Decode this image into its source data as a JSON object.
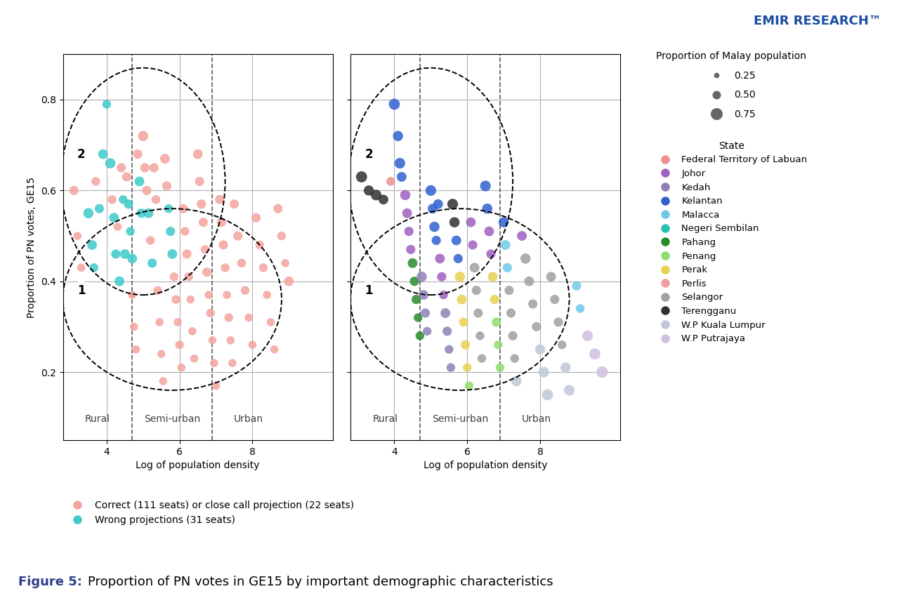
{
  "title": "Proportion of PN votes in GE15 by important demographic characteristics",
  "figure_label": "Figure 5:",
  "credit": "EMIR RESEARCH™",
  "size_legend": {
    "title": "Proportion of Malay population",
    "sizes": [
      30,
      75,
      150
    ],
    "labels": [
      "0.25",
      "0.50",
      "0.75"
    ]
  },
  "chart_data": [
    {
      "type": "scatter",
      "xlabel": "Log of population density",
      "ylabel": "Proportion of PN votes, GE15",
      "xlim": [
        2.8,
        10.2
      ],
      "ylim": [
        0.05,
        0.9
      ],
      "xticks": [
        4,
        6,
        8
      ],
      "yticks": [
        0.2,
        0.4,
        0.6,
        0.8
      ],
      "grid": true,
      "vlines": [
        4.7,
        6.9
      ],
      "ellipses": [
        {
          "cx": 5.0,
          "cy": 0.62,
          "width": 4.5,
          "height": 0.5
        },
        {
          "cx": 5.8,
          "cy": 0.36,
          "width": 6.0,
          "height": 0.4
        }
      ],
      "annotations": [
        {
          "text": "Rural",
          "x": 3.75,
          "y": 0.085
        },
        {
          "text": "Semi-urban",
          "x": 5.8,
          "y": 0.085
        },
        {
          "text": "Urban",
          "x": 7.9,
          "y": 0.085
        }
      ],
      "region_labels": [
        {
          "text": "2",
          "x": 3.3,
          "y": 0.68
        },
        {
          "text": "1",
          "x": 3.3,
          "y": 0.38
        }
      ],
      "x": [
        3.1,
        3.2,
        3.3,
        3.5,
        3.6,
        3.65,
        3.7,
        3.8,
        3.9,
        4.0,
        4.1,
        4.15,
        4.2,
        4.25,
        4.3,
        4.35,
        4.4,
        4.45,
        4.5,
        4.55,
        4.6,
        4.65,
        4.7,
        4.7,
        4.75,
        4.8,
        4.85,
        4.9,
        4.95,
        5.0,
        5.05,
        5.1,
        5.15,
        5.2,
        5.25,
        5.3,
        5.35,
        5.4,
        5.45,
        5.5,
        5.55,
        5.6,
        5.65,
        5.7,
        5.75,
        5.8,
        5.85,
        5.9,
        5.95,
        6.0,
        6.05,
        6.1,
        6.15,
        6.2,
        6.25,
        6.3,
        6.35,
        6.4,
        6.5,
        6.55,
        6.6,
        6.65,
        6.7,
        6.75,
        6.8,
        6.85,
        6.9,
        6.95,
        7.0,
        7.1,
        7.15,
        7.2,
        7.25,
        7.3,
        7.35,
        7.4,
        7.45,
        7.5,
        7.6,
        7.7,
        7.8,
        7.9,
        8.0,
        8.1,
        8.2,
        8.3,
        8.4,
        8.5,
        8.6,
        8.7,
        8.8,
        8.9,
        9.0
      ],
      "y": [
        0.6,
        0.5,
        0.43,
        0.55,
        0.48,
        0.43,
        0.62,
        0.56,
        0.68,
        0.79,
        0.66,
        0.58,
        0.54,
        0.46,
        0.52,
        0.4,
        0.65,
        0.58,
        0.46,
        0.63,
        0.57,
        0.51,
        0.45,
        0.37,
        0.3,
        0.25,
        0.68,
        0.62,
        0.55,
        0.72,
        0.65,
        0.6,
        0.55,
        0.49,
        0.44,
        0.65,
        0.58,
        0.38,
        0.31,
        0.24,
        0.18,
        0.67,
        0.61,
        0.56,
        0.51,
        0.46,
        0.41,
        0.36,
        0.31,
        0.26,
        0.21,
        0.56,
        0.51,
        0.46,
        0.41,
        0.36,
        0.29,
        0.23,
        0.68,
        0.62,
        0.57,
        0.53,
        0.47,
        0.42,
        0.37,
        0.33,
        0.27,
        0.22,
        0.17,
        0.58,
        0.53,
        0.48,
        0.43,
        0.37,
        0.32,
        0.27,
        0.22,
        0.57,
        0.5,
        0.44,
        0.38,
        0.32,
        0.26,
        0.54,
        0.48,
        0.43,
        0.37,
        0.31,
        0.25,
        0.56,
        0.5,
        0.44,
        0.4
      ],
      "sizes": [
        90,
        70,
        70,
        110,
        100,
        80,
        80,
        90,
        100,
        80,
        110,
        80,
        100,
        90,
        70,
        100,
        90,
        80,
        100,
        90,
        90,
        80,
        100,
        70,
        70,
        70,
        90,
        100,
        90,
        110,
        90,
        90,
        100,
        80,
        90,
        90,
        80,
        80,
        70,
        70,
        70,
        100,
        90,
        80,
        90,
        100,
        80,
        80,
        70,
        80,
        70,
        90,
        80,
        90,
        80,
        70,
        70,
        70,
        100,
        90,
        90,
        90,
        80,
        90,
        70,
        80,
        70,
        70,
        70,
        90,
        90,
        90,
        80,
        70,
        80,
        70,
        70,
        90,
        90,
        80,
        80,
        70,
        70,
        90,
        80,
        80,
        70,
        70,
        70,
        90,
        80,
        70,
        100
      ],
      "colors": [
        "#F4A49E",
        "#F4A49E",
        "#F4A49E",
        "#3EC9C9",
        "#3EC9C9",
        "#3EC9C9",
        "#F4A49E",
        "#3EC9C9",
        "#3EC9C9",
        "#3EC9C9",
        "#3EC9C9",
        "#F4A49E",
        "#3EC9C9",
        "#3EC9C9",
        "#F4A49E",
        "#3EC9C9",
        "#F4A49E",
        "#3EC9C9",
        "#3EC9C9",
        "#F4A49E",
        "#3EC9C9",
        "#3EC9C9",
        "#3EC9C9",
        "#F4A49E",
        "#F4A49E",
        "#F4A49E",
        "#F4A49E",
        "#3EC9C9",
        "#3EC9C9",
        "#F4A49E",
        "#F4A49E",
        "#F4A49E",
        "#3EC9C9",
        "#F4A49E",
        "#3EC9C9",
        "#F4A49E",
        "#F4A49E",
        "#F4A49E",
        "#F4A49E",
        "#F4A49E",
        "#F4A49E",
        "#F4A49E",
        "#F4A49E",
        "#3EC9C9",
        "#3EC9C9",
        "#3EC9C9",
        "#F4A49E",
        "#F4A49E",
        "#F4A49E",
        "#F4A49E",
        "#F4A49E",
        "#F4A49E",
        "#F4A49E",
        "#F4A49E",
        "#F4A49E",
        "#F4A49E",
        "#F4A49E",
        "#F4A49E",
        "#F4A49E",
        "#F4A49E",
        "#F4A49E",
        "#F4A49E",
        "#F4A49E",
        "#F4A49E",
        "#F4A49E",
        "#F4A49E",
        "#F4A49E",
        "#F4A49E",
        "#F4A49E",
        "#F4A49E",
        "#F4A49E",
        "#F4A49E",
        "#F4A49E",
        "#F4A49E",
        "#F4A49E",
        "#F4A49E",
        "#F4A49E",
        "#F4A49E",
        "#F4A49E",
        "#F4A49E",
        "#F4A49E",
        "#F4A49E",
        "#F4A49E",
        "#F4A49E",
        "#F4A49E",
        "#F4A49E",
        "#F4A49E",
        "#F4A49E",
        "#F4A49E",
        "#F4A49E",
        "#F4A49E",
        "#F4A49E",
        "#F4A49E"
      ],
      "legend_entries": [
        {
          "name": "Correct (111 seats) or close call projection (22 seats)",
          "color": "#F4A49E"
        },
        {
          "name": "Wrong projections (31 seats)",
          "color": "#3EC9C9"
        }
      ]
    },
    {
      "type": "scatter",
      "xlabel": "Log of population density",
      "xlim": [
        2.8,
        10.2
      ],
      "ylim": [
        0.05,
        0.9
      ],
      "xticks": [
        4,
        6,
        8
      ],
      "yticks": [
        0.2,
        0.4,
        0.6,
        0.8
      ],
      "grid": true,
      "tick_labels": "x",
      "vlines": [
        4.7,
        6.9
      ],
      "ellipses": [
        {
          "cx": 5.0,
          "cy": 0.62,
          "width": 4.5,
          "height": 0.5
        },
        {
          "cx": 5.8,
          "cy": 0.36,
          "width": 6.0,
          "height": 0.4
        }
      ],
      "annotations": [
        {
          "text": "Rural",
          "x": 3.75,
          "y": 0.085
        },
        {
          "text": "Semi-urban",
          "x": 5.8,
          "y": 0.085
        },
        {
          "text": "Urban",
          "x": 7.9,
          "y": 0.085
        }
      ],
      "region_labels": [
        {
          "text": "2",
          "x": 3.3,
          "y": 0.68
        },
        {
          "text": "1",
          "x": 3.3,
          "y": 0.38
        }
      ],
      "x": [
        3.1,
        3.3,
        3.5,
        3.7,
        3.9,
        4.0,
        4.1,
        4.15,
        4.2,
        4.3,
        4.35,
        4.4,
        4.45,
        4.5,
        4.55,
        4.6,
        4.65,
        4.7,
        4.75,
        4.8,
        4.85,
        4.9,
        5.0,
        5.05,
        5.1,
        5.15,
        5.2,
        5.25,
        5.3,
        5.35,
        5.4,
        5.45,
        5.5,
        5.55,
        5.6,
        5.65,
        5.7,
        5.75,
        5.8,
        5.85,
        5.9,
        5.95,
        6.0,
        6.05,
        6.1,
        6.15,
        6.2,
        6.25,
        6.3,
        6.35,
        6.4,
        6.5,
        6.55,
        6.6,
        6.65,
        6.7,
        6.75,
        6.8,
        6.85,
        6.9,
        7.0,
        7.05,
        7.1,
        7.15,
        7.2,
        7.25,
        7.3,
        7.35,
        7.5,
        7.6,
        7.7,
        7.8,
        7.9,
        8.0,
        8.1,
        8.2,
        8.3,
        8.4,
        8.5,
        8.6,
        8.7,
        8.8,
        9.0,
        9.1,
        9.3,
        9.5,
        9.7
      ],
      "y": [
        0.63,
        0.6,
        0.59,
        0.58,
        0.62,
        0.79,
        0.72,
        0.66,
        0.63,
        0.59,
        0.55,
        0.51,
        0.47,
        0.44,
        0.4,
        0.36,
        0.32,
        0.28,
        0.41,
        0.37,
        0.33,
        0.29,
        0.6,
        0.56,
        0.52,
        0.49,
        0.57,
        0.45,
        0.41,
        0.37,
        0.33,
        0.29,
        0.25,
        0.21,
        0.57,
        0.53,
        0.49,
        0.45,
        0.41,
        0.36,
        0.31,
        0.26,
        0.21,
        0.17,
        0.53,
        0.48,
        0.43,
        0.38,
        0.33,
        0.28,
        0.23,
        0.61,
        0.56,
        0.51,
        0.46,
        0.41,
        0.36,
        0.31,
        0.26,
        0.21,
        0.53,
        0.48,
        0.43,
        0.38,
        0.33,
        0.28,
        0.23,
        0.18,
        0.5,
        0.45,
        0.4,
        0.35,
        0.3,
        0.25,
        0.2,
        0.15,
        0.41,
        0.36,
        0.31,
        0.26,
        0.21,
        0.16,
        0.39,
        0.34,
        0.28,
        0.24,
        0.2
      ],
      "sizes": [
        130,
        110,
        120,
        100,
        80,
        130,
        110,
        120,
        100,
        110,
        100,
        90,
        90,
        100,
        90,
        90,
        80,
        80,
        110,
        100,
        90,
        80,
        120,
        100,
        110,
        90,
        100,
        100,
        90,
        80,
        100,
        90,
        80,
        80,
        120,
        110,
        100,
        90,
        110,
        100,
        90,
        90,
        80,
        80,
        100,
        90,
        100,
        90,
        90,
        80,
        80,
        120,
        110,
        100,
        90,
        100,
        90,
        90,
        80,
        80,
        110,
        100,
        90,
        90,
        90,
        90,
        80,
        110,
        100,
        110,
        100,
        90,
        90,
        110,
        120,
        130,
        100,
        90,
        90,
        80,
        110,
        120,
        90,
        80,
        120,
        130,
        140
      ],
      "colors": [
        "#303030",
        "#303030",
        "#303030",
        "#303030",
        "#EF8C8C",
        "#3060D0",
        "#3060D0",
        "#3060D0",
        "#3060D0",
        "#A060C0",
        "#A060C0",
        "#A060C0",
        "#A060C0",
        "#2A8A2A",
        "#2A8A2A",
        "#2A8A2A",
        "#2A8A2A",
        "#2A8A2A",
        "#9080B8",
        "#9080B8",
        "#9080B8",
        "#9080B8",
        "#3060D0",
        "#3060D0",
        "#3060D0",
        "#3060D0",
        "#3060D0",
        "#A060C0",
        "#A060C0",
        "#A060C0",
        "#9080B8",
        "#9080B8",
        "#9080B8",
        "#9080B8",
        "#303030",
        "#303030",
        "#3060D0",
        "#3060D0",
        "#E8D050",
        "#E8D050",
        "#E8D050",
        "#E8D050",
        "#E8D050",
        "#90DD70",
        "#A060C0",
        "#A060C0",
        "#A0A0A0",
        "#A0A0A0",
        "#A0A0A0",
        "#A0A0A0",
        "#A0A0A0",
        "#3060D0",
        "#3060D0",
        "#A060C0",
        "#A060C0",
        "#E8D050",
        "#E8D050",
        "#90DD70",
        "#90DD70",
        "#90DD70",
        "#3060D0",
        "#70C8E8",
        "#70C8E8",
        "#A0A0A0",
        "#A0A0A0",
        "#A0A0A0",
        "#A0A0A0",
        "#C0C8D8",
        "#A060C0",
        "#A0A0A0",
        "#A0A0A0",
        "#A0A0A0",
        "#A0A0A0",
        "#C0C8D8",
        "#C0C8D8",
        "#C0C8D8",
        "#A0A0A0",
        "#A0A0A0",
        "#A0A0A0",
        "#A0A0A0",
        "#C0C8D8",
        "#C0C8D8",
        "#70C8E8",
        "#70C8E8",
        "#D0C0E0",
        "#D0C0E0",
        "#D0C0E0"
      ],
      "legend_title": "State",
      "legend_entries": [
        {
          "name": "Federal Territory of Labuan",
          "color": "#EF8C8C"
        },
        {
          "name": "Johor",
          "color": "#A060C0"
        },
        {
          "name": "Kedah",
          "color": "#9080B8"
        },
        {
          "name": "Kelantan",
          "color": "#3060D0"
        },
        {
          "name": "Malacca",
          "color": "#70C8E8"
        },
        {
          "name": "Negeri Sembilan",
          "color": "#28C0B0"
        },
        {
          "name": "Pahang",
          "color": "#2A8A2A"
        },
        {
          "name": "Penang",
          "color": "#90DD70"
        },
        {
          "name": "Perak",
          "color": "#E8D050"
        },
        {
          "name": "Perlis",
          "color": "#F0A0A0"
        },
        {
          "name": "Selangor",
          "color": "#A0A0A0"
        },
        {
          "name": "Terengganu",
          "color": "#303030"
        },
        {
          "name": "W.P Kuala Lumpur",
          "color": "#C0C8D8"
        },
        {
          "name": "W.P Putrajaya",
          "color": "#D0C0E0"
        }
      ]
    }
  ]
}
